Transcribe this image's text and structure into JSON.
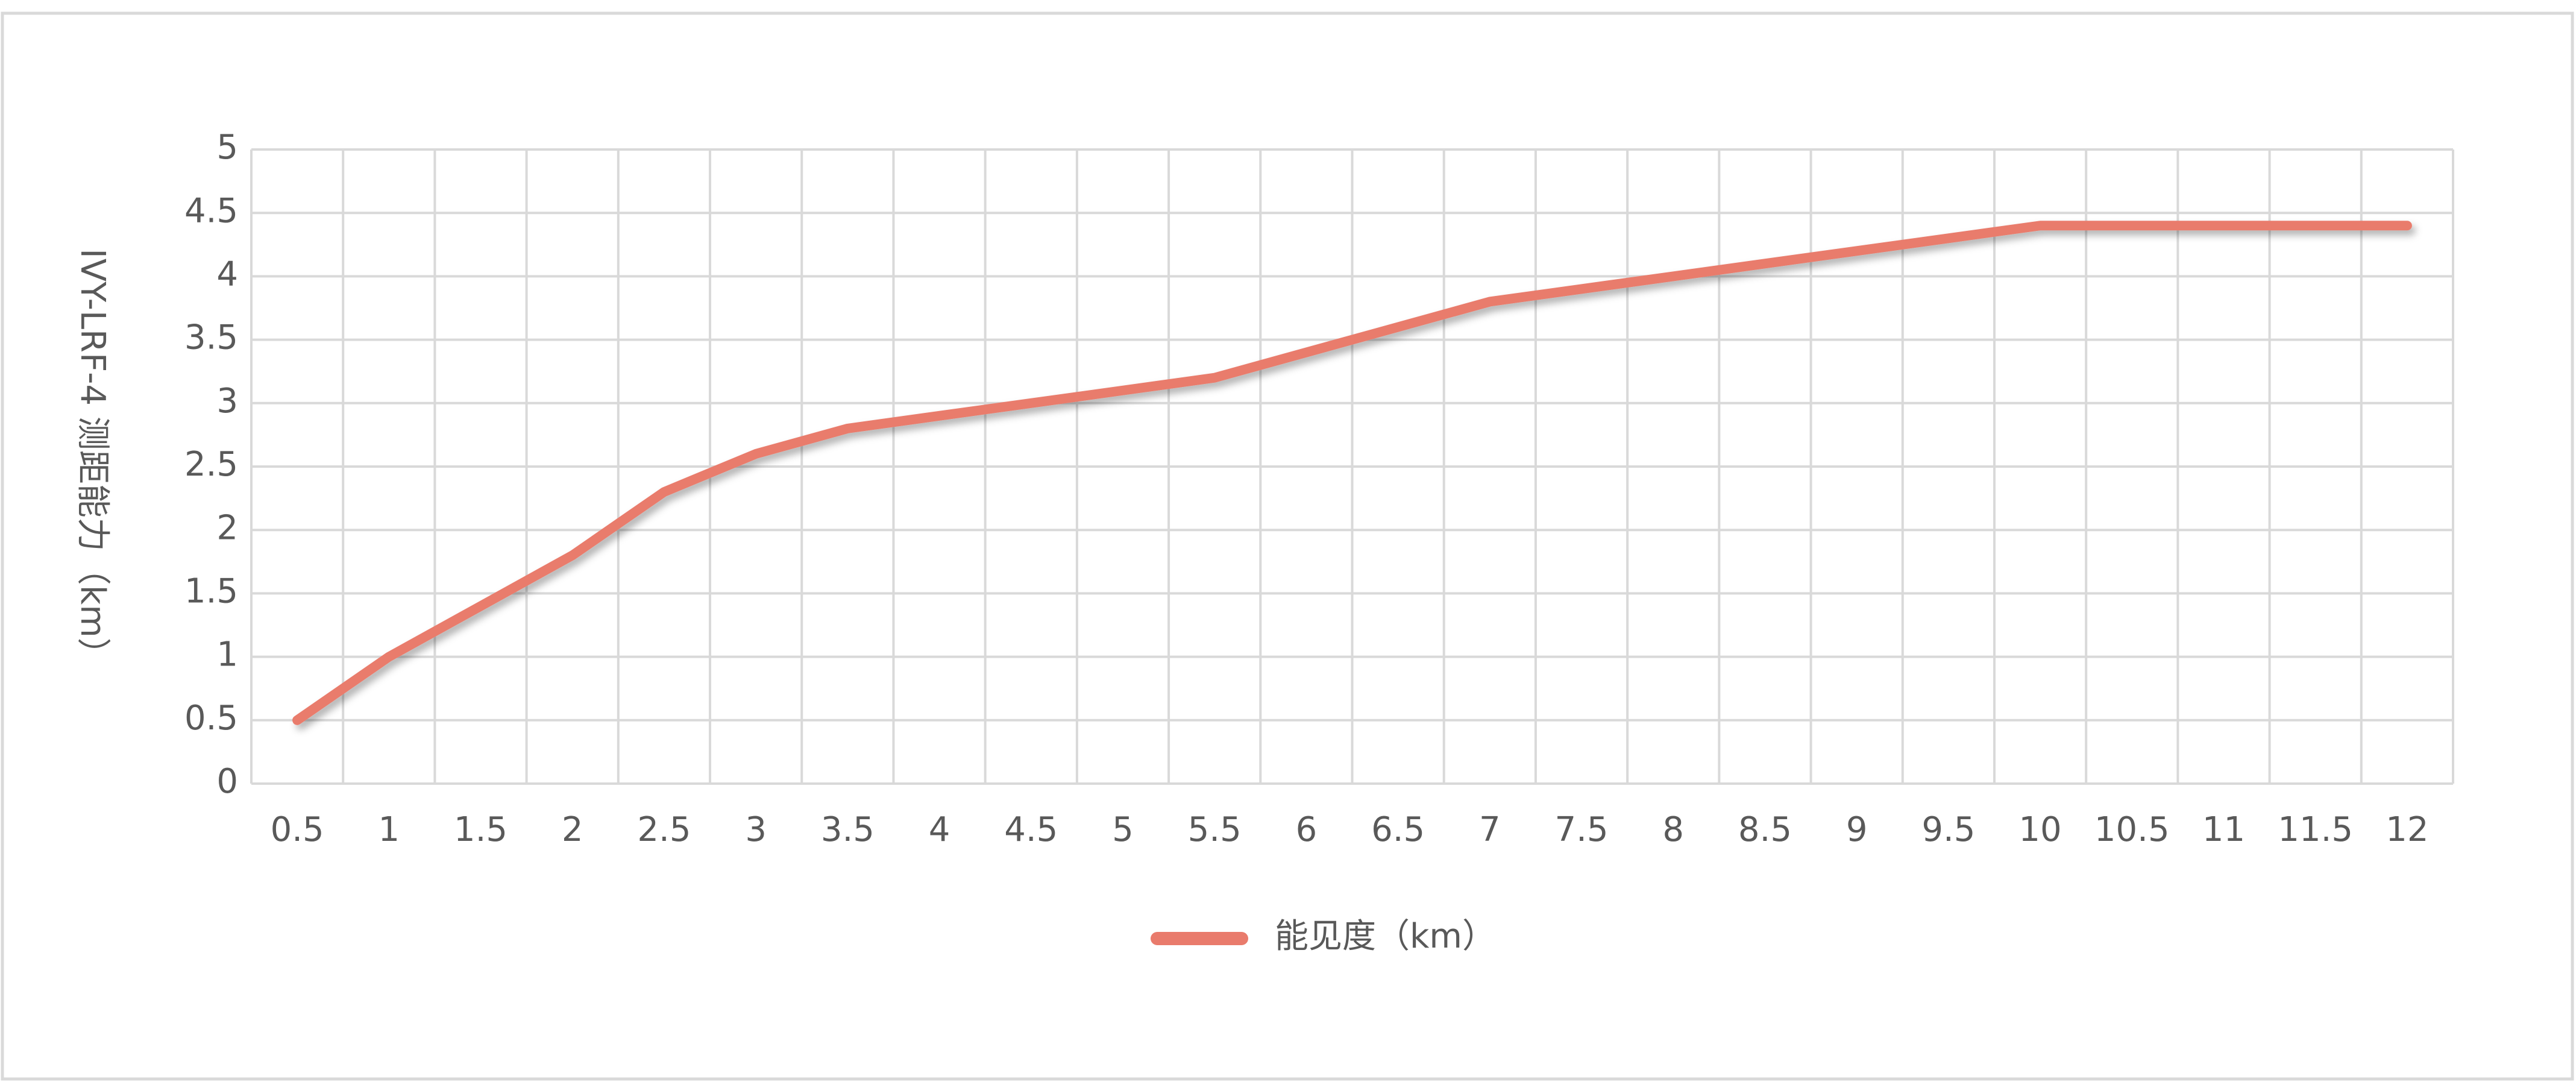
{
  "chart_data": {
    "type": "line",
    "y_axis_label": "IVY-LRF-4 测距能力（km）",
    "categories": [
      "0.5",
      "1",
      "1.5",
      "2",
      "2.5",
      "3",
      "3.5",
      "4",
      "4.5",
      "5",
      "5.5",
      "6",
      "6.5",
      "7",
      "7.5",
      "8",
      "8.5",
      "9",
      "9.5",
      "10",
      "10.5",
      "11",
      "11.5",
      "12"
    ],
    "series": [
      {
        "name": "能见度（km）",
        "color": "#e97b6c",
        "values": [
          0.5,
          1.0,
          1.4,
          1.8,
          2.3,
          2.6,
          2.8,
          2.9,
          3.0,
          3.1,
          3.2,
          3.4,
          3.6,
          3.8,
          3.9,
          4.0,
          4.1,
          4.2,
          4.3,
          4.4,
          4.4,
          4.4,
          4.4,
          4.4
        ]
      }
    ],
    "ylim": [
      0,
      5
    ],
    "yticks": [
      0,
      0.5,
      1,
      1.5,
      2,
      2.5,
      3,
      3.5,
      4,
      4.5,
      5
    ],
    "grid": true,
    "legend": "bottom"
  }
}
